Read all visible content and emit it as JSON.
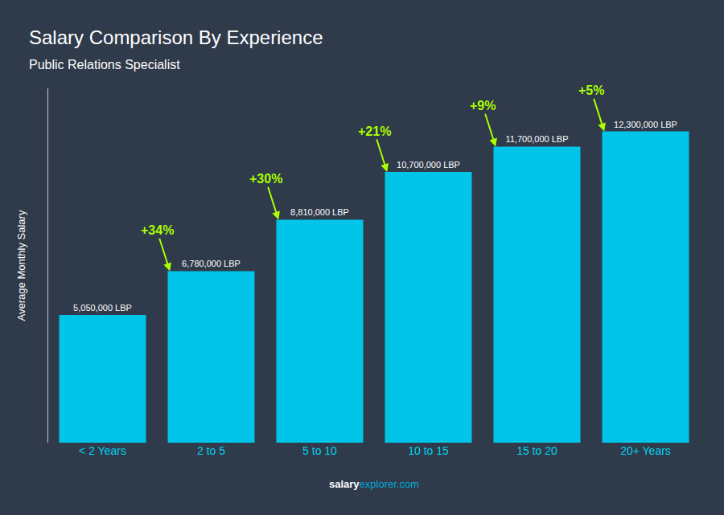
{
  "chart_data": {
    "type": "bar",
    "title": "Salary Comparison By Experience",
    "subtitle": "Public Relations Specialist",
    "ylabel": "Average Monthly Salary",
    "categories": [
      "< 2 Years",
      "2 to 5",
      "5 to 10",
      "10 to 15",
      "15 to 20",
      "20+ Years"
    ],
    "values": [
      5050000,
      6780000,
      8810000,
      10700000,
      11700000,
      12300000
    ],
    "value_labels": [
      "5,050,000 LBP",
      "6,780,000 LBP",
      "8,810,000 LBP",
      "10,700,000 LBP",
      "11,700,000 LBP",
      "12,300,000 LBP"
    ],
    "data_labels": true,
    "color": "#00C5E8",
    "ylim": [
      0,
      14000000
    ],
    "tick_labels": "x",
    "grid": false,
    "annotations": [
      {
        "text": "+34%",
        "color": "#AAFF00"
      },
      {
        "text": "+30%",
        "color": "#AAFF00"
      },
      {
        "text": "+21%",
        "color": "#AAFF00"
      },
      {
        "text": "+9%",
        "color": "#AAFF00"
      },
      {
        "text": "+5%",
        "color": "#AAFF00"
      }
    ],
    "footer": [
      "salary",
      "explorer.com"
    ]
  }
}
